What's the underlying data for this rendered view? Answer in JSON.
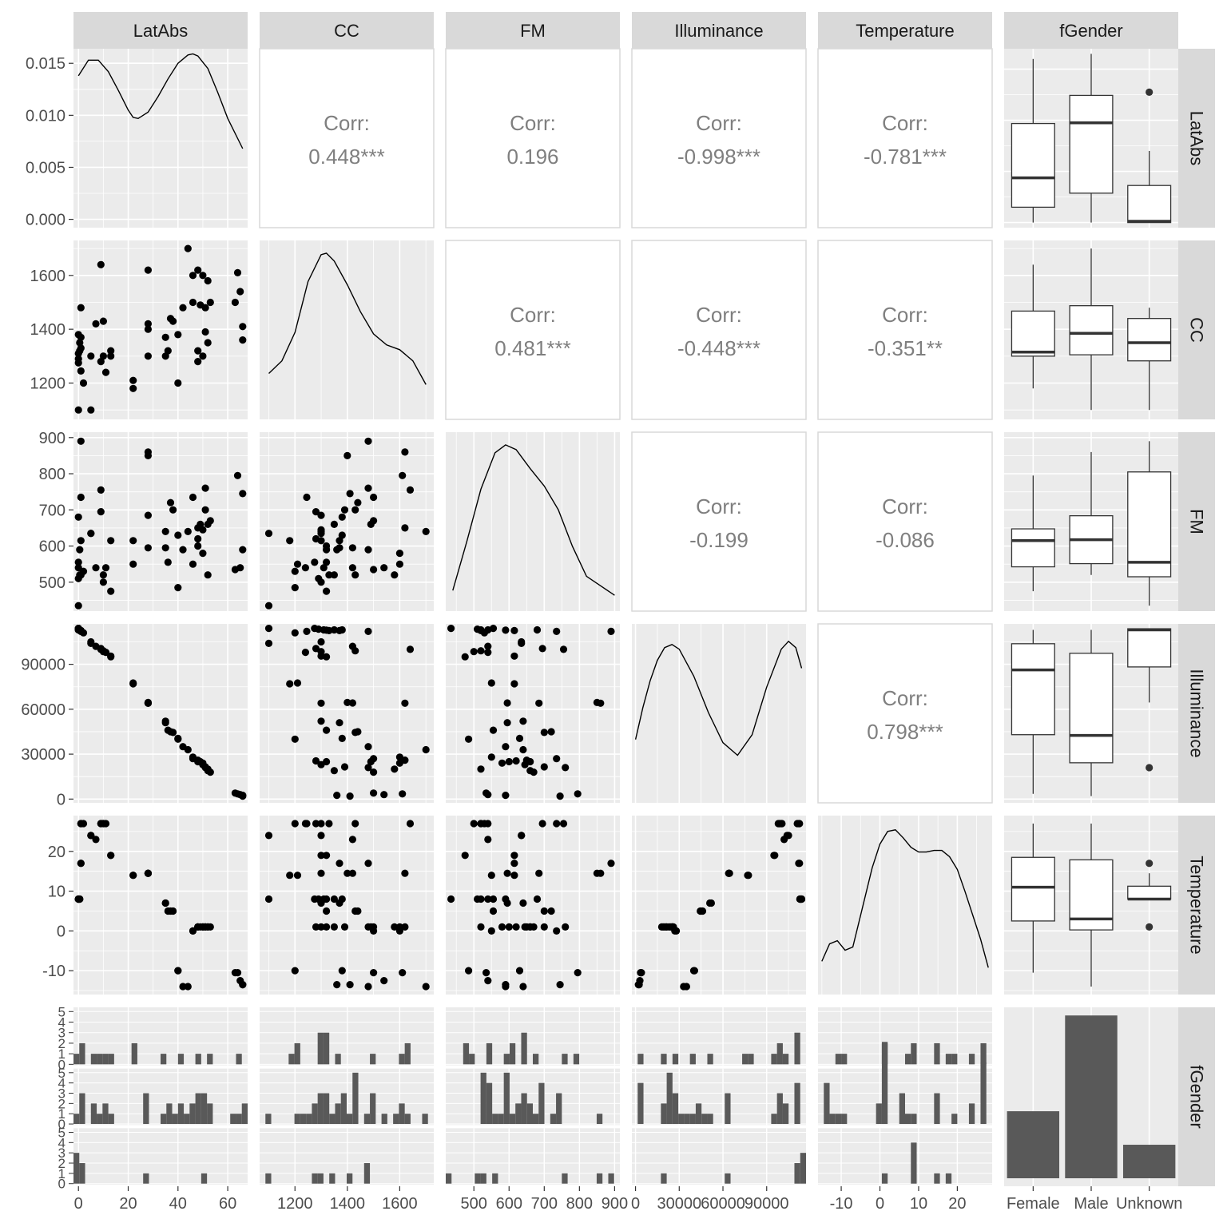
{
  "chart_data": {
    "type": "pairs_matrix",
    "variables": [
      "LatAbs",
      "CC",
      "FM",
      "Illuminance",
      "Temperature",
      "fGender"
    ],
    "theme": {
      "panel_bg": "#EBEBEB",
      "grid": "#FFFFFF",
      "strip_bg": "#D9D9D9",
      "mark": "#000000",
      "bar_fill": "#595959",
      "corr_text": "#7F7F7F",
      "axis_text": "#4D4D4D",
      "strip_text": "#1A1A1A"
    },
    "corr_label": "Corr:",
    "correlations": [
      {
        "row": "LatAbs",
        "col": "CC",
        "value": "0.448***"
      },
      {
        "row": "LatAbs",
        "col": "FM",
        "value": "0.196"
      },
      {
        "row": "LatAbs",
        "col": "Illuminance",
        "value": "-0.998***"
      },
      {
        "row": "LatAbs",
        "col": "Temperature",
        "value": "-0.781***"
      },
      {
        "row": "CC",
        "col": "FM",
        "value": "0.481***"
      },
      {
        "row": "CC",
        "col": "Illuminance",
        "value": "-0.448***"
      },
      {
        "row": "CC",
        "col": "Temperature",
        "value": "-0.351**"
      },
      {
        "row": "FM",
        "col": "Illuminance",
        "value": "-0.199"
      },
      {
        "row": "FM",
        "col": "Temperature",
        "value": "-0.086"
      },
      {
        "row": "Illuminance",
        "col": "Temperature",
        "value": "0.798***"
      }
    ],
    "axes": {
      "LatAbs": {
        "range": [
          -2,
          68
        ],
        "ticks": [
          0,
          20,
          40,
          60
        ],
        "tick_labels": [
          "0",
          "20",
          "40",
          "60"
        ]
      },
      "CC": {
        "range": [
          1065,
          1730
        ],
        "ticks": [
          1200,
          1400,
          1600
        ],
        "tick_labels": [
          "1200",
          "1400",
          "1600"
        ]
      },
      "FM": {
        "range": [
          420,
          915
        ],
        "ticks": [
          500,
          600,
          700,
          800,
          900
        ],
        "tick_labels": [
          "500",
          "600",
          "700",
          "800",
          "900"
        ]
      },
      "Illuminance": {
        "range": [
          -2500,
          117000
        ],
        "ticks": [
          0,
          30000,
          60000,
          90000
        ],
        "tick_labels": [
          "0",
          "30000",
          "60000",
          "90000"
        ]
      },
      "Temperature": {
        "range": [
          -16,
          29
        ],
        "ticks": [
          -10,
          0,
          10,
          20
        ],
        "tick_labels": [
          "-10",
          "0",
          "10",
          "20"
        ]
      },
      "fGender": {
        "categories": [
          "Female",
          "Male",
          "Unknown"
        ]
      }
    },
    "left_axes": {
      "LatAbs": {
        "range": [
          -0.0008,
          0.0164
        ],
        "ticks": [
          0,
          0.005,
          0.01,
          0.015
        ],
        "tick_labels": [
          "0.000",
          "0.005",
          "0.010",
          "0.015"
        ]
      },
      "fGender": {
        "range": [
          -0.1,
          5.4
        ],
        "ticks": [
          0,
          1,
          2,
          3,
          4,
          5
        ],
        "tick_labels": [
          "0",
          "1",
          "2",
          "3",
          "4",
          "5"
        ]
      }
    },
    "observations": [
      [
        0,
        1275,
        555,
        114000,
        8,
        "Unknown"
      ],
      [
        0.5,
        1350,
        520,
        113000,
        8,
        "Unknown"
      ],
      [
        0,
        1290,
        510,
        113500,
        8,
        "Unknown"
      ],
      [
        1,
        1480,
        890,
        112000,
        17,
        "Unknown"
      ],
      [
        0,
        1100,
        435,
        114000,
        8,
        "Unknown"
      ],
      [
        0,
        1310,
        540,
        113000,
        8,
        "Female"
      ],
      [
        1,
        1370,
        615,
        112500,
        17,
        "Female"
      ],
      [
        0.5,
        1320,
        590,
        112800,
        8,
        "Female"
      ],
      [
        1,
        1245,
        735,
        112000,
        27,
        "Male"
      ],
      [
        2,
        1200,
        530,
        111000,
        27,
        "Male"
      ],
      [
        1,
        1330,
        520,
        112500,
        27,
        "Male"
      ],
      [
        0,
        1380,
        680,
        113000,
        8,
        "Male"
      ],
      [
        5,
        1100,
        635,
        104000,
        24,
        "Male"
      ],
      [
        5,
        1300,
        635,
        105000,
        24,
        "Female"
      ],
      [
        7,
        1420,
        540,
        102000,
        23,
        "Male"
      ],
      [
        9,
        1640,
        755,
        100000,
        27,
        "Female"
      ],
      [
        9,
        1280,
        695,
        100500,
        27,
        "Male"
      ],
      [
        10,
        1430,
        520,
        99000,
        27,
        "Male"
      ],
      [
        10,
        1300,
        500,
        98500,
        27,
        "Female"
      ],
      [
        11,
        1240,
        540,
        98000,
        27,
        "Male"
      ],
      [
        13,
        1320,
        475,
        95000,
        19,
        "Female"
      ],
      [
        13,
        1300,
        615,
        95500,
        19,
        "Male"
      ],
      [
        22,
        1180,
        615,
        77000,
        14,
        "Female"
      ],
      [
        22,
        1210,
        550,
        77500,
        14,
        "Female"
      ],
      [
        28,
        1620,
        860,
        64000,
        14.5,
        "Male"
      ],
      [
        28,
        1400,
        850,
        64500,
        14.5,
        "Unknown"
      ],
      [
        28,
        1300,
        685,
        64000,
        14.5,
        "Male"
      ],
      [
        28,
        1420,
        595,
        64200,
        14.5,
        "Male"
      ],
      [
        35,
        1370,
        595,
        51000,
        7,
        "Male"
      ],
      [
        35,
        1300,
        640,
        52000,
        7,
        "Female"
      ],
      [
        36,
        1320,
        555,
        46000,
        5,
        "Male"
      ],
      [
        37,
        1440,
        720,
        45000,
        5,
        "Male"
      ],
      [
        38,
        1430,
        700,
        44500,
        5,
        "Male"
      ],
      [
        40,
        1200,
        485,
        40000,
        -10,
        "Female"
      ],
      [
        40,
        1380,
        630,
        40500,
        -10,
        "Male"
      ],
      [
        42,
        1480,
        590,
        35000,
        -14,
        "Male"
      ],
      [
        44,
        1700,
        640,
        33000,
        -14,
        "Male"
      ],
      [
        46,
        1600,
        550,
        28000,
        0,
        "Male"
      ],
      [
        46,
        1500,
        735,
        27000,
        0,
        "Male"
      ],
      [
        48,
        1620,
        650,
        26000,
        1,
        "Female"
      ],
      [
        48,
        1320,
        600,
        25000,
        1,
        "Male"
      ],
      [
        48,
        1280,
        620,
        25500,
        1,
        "Male"
      ],
      [
        49,
        1490,
        660,
        25000,
        1,
        "Male"
      ],
      [
        50,
        1600,
        580,
        24000,
        1,
        "Male"
      ],
      [
        50,
        1300,
        645,
        23000,
        1,
        "Male"
      ],
      [
        51,
        1480,
        760,
        21000,
        1,
        "Unknown"
      ],
      [
        51,
        1390,
        700,
        21500,
        1,
        "Male"
      ],
      [
        52,
        1580,
        520,
        20000,
        1,
        "Male"
      ],
      [
        52,
        1350,
        660,
        19000,
        1,
        "Male"
      ],
      [
        53,
        1500,
        670,
        18000,
        1,
        "Female"
      ],
      [
        63,
        1500,
        535,
        4000,
        -10.5,
        "Male"
      ],
      [
        64,
        1610,
        795,
        3500,
        -10.5,
        "Female"
      ],
      [
        65,
        1540,
        540,
        3000,
        -12.5,
        "Male"
      ],
      [
        66,
        1360,
        590,
        2500,
        -13.5,
        "Male"
      ],
      [
        66,
        1410,
        745,
        2000,
        -13.5,
        "Male"
      ]
    ],
    "densities": {
      "LatAbs": {
        "x": [
          0,
          4,
          8,
          12,
          16,
          20,
          22,
          24,
          28,
          32,
          36,
          40,
          44,
          46,
          48,
          52,
          56,
          60,
          66
        ],
        "y": [
          0.0138,
          0.0153,
          0.0153,
          0.0142,
          0.0124,
          0.0105,
          0.0098,
          0.0097,
          0.0103,
          0.0118,
          0.0135,
          0.015,
          0.0158,
          0.0159,
          0.0157,
          0.0145,
          0.0122,
          0.0097,
          0.0068
        ]
      },
      "CC": {
        "x": [
          1100,
          1150,
          1200,
          1250,
          1300,
          1320,
          1350,
          1400,
          1450,
          1500,
          1550,
          1600,
          1650,
          1700
        ],
        "y": [
          0.24,
          0.32,
          0.5,
          0.82,
          0.99,
          1.0,
          0.95,
          0.8,
          0.63,
          0.49,
          0.42,
          0.39,
          0.32,
          0.17
        ]
      },
      "FM": {
        "x": [
          440,
          480,
          520,
          560,
          590,
          620,
          660,
          700,
          740,
          780,
          820,
          860,
          900
        ],
        "y": [
          0.08,
          0.39,
          0.72,
          0.95,
          1.0,
          0.97,
          0.85,
          0.74,
          0.59,
          0.36,
          0.17,
          0.11,
          0.05
        ]
      },
      "Illuminance": {
        "x": [
          0,
          5000,
          10000,
          15000,
          20000,
          25000,
          30000,
          40000,
          50000,
          60000,
          70000,
          80000,
          90000,
          100000,
          105000,
          110000,
          114000
        ],
        "y": [
          0.35,
          0.55,
          0.72,
          0.85,
          0.93,
          0.95,
          0.92,
          0.75,
          0.52,
          0.33,
          0.25,
          0.38,
          0.68,
          0.92,
          0.97,
          0.93,
          0.8
        ]
      },
      "Temperature": {
        "x": [
          -15,
          -13,
          -11,
          -9,
          -7,
          -5,
          -2,
          0,
          2,
          4,
          6,
          8,
          10,
          12,
          14,
          16,
          18,
          20,
          22,
          24,
          26,
          28
        ],
        "y": [
          0.16,
          0.27,
          0.29,
          0.23,
          0.25,
          0.45,
          0.75,
          0.9,
          0.98,
          0.99,
          0.94,
          0.88,
          0.85,
          0.85,
          0.86,
          0.86,
          0.82,
          0.74,
          0.6,
          0.45,
          0.3,
          0.12
        ]
      }
    },
    "row_labels": [
      "LatAbs",
      "CC",
      "FM",
      "Illuminance",
      "Temperature",
      "fGender"
    ],
    "col_labels": [
      "LatAbs",
      "CC",
      "FM",
      "Illuminance",
      "Temperature",
      "fGender"
    ]
  }
}
